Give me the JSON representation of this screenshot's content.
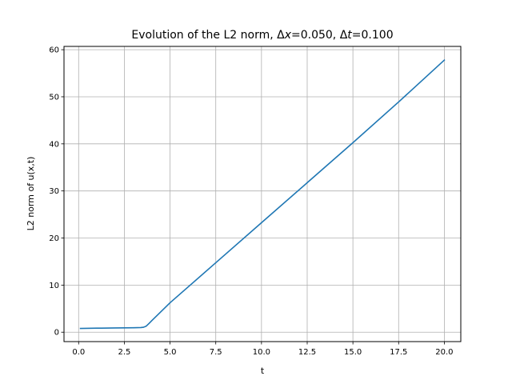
{
  "chart_data": {
    "type": "line",
    "title": "Evolution of the L2 norm, Δx=0.050, Δt=0.100",
    "title_parts": {
      "prefix": "Evolution of the L2 norm, ",
      "dx_symbol": "Δ",
      "dx_var": "x",
      "dx_value": "=0.050, ",
      "dt_symbol": "Δ",
      "dt_var": "t",
      "dt_value": "=0.100"
    },
    "xlabel": "t",
    "ylabel": "L2 norm of u(x,t)",
    "xlim": [
      -0.8,
      20.9
    ],
    "ylim": [
      -2.0,
      60.7
    ],
    "xticks": [
      0.0,
      2.5,
      5.0,
      7.5,
      10.0,
      12.5,
      15.0,
      17.5,
      20.0
    ],
    "xtick_labels": [
      "0.0",
      "2.5",
      "5.0",
      "7.5",
      "10.0",
      "12.5",
      "15.0",
      "17.5",
      "20.0"
    ],
    "yticks": [
      0,
      10,
      20,
      30,
      40,
      50,
      60
    ],
    "ytick_labels": [
      "0",
      "10",
      "20",
      "30",
      "40",
      "50",
      "60"
    ],
    "grid": true,
    "line_color": "#1f77b4",
    "series": [
      {
        "x": [
          0.1,
          1.0,
          2.0,
          3.0,
          3.4,
          3.55,
          3.7,
          3.85,
          4.0,
          5.0,
          7.5,
          10.0,
          12.5,
          15.0,
          17.5,
          20.0
        ],
        "y": [
          0.8,
          0.85,
          0.9,
          0.95,
          0.98,
          1.05,
          1.3,
          1.85,
          2.45,
          6.25,
          14.75,
          23.25,
          31.75,
          40.25,
          48.9,
          57.8
        ]
      }
    ]
  }
}
